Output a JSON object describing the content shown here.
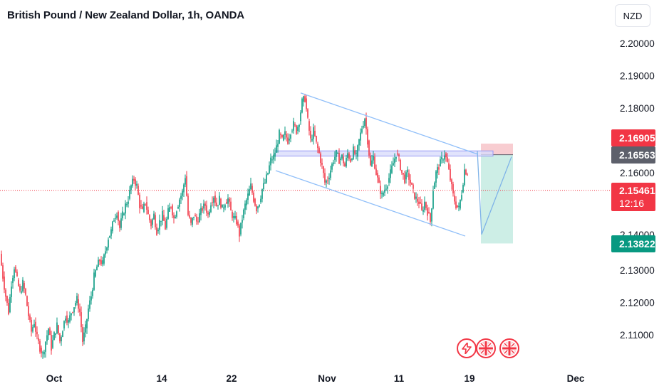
{
  "header": {
    "title": "British Pound / New Zealand Dollar, 1h, OANDA"
  },
  "currency_button": "NZD",
  "chart_data": {
    "type": "candlestick",
    "symbol": "GBPNZD",
    "interval": "1h",
    "yaxis": {
      "ticks": [
        "2.20000",
        "2.19000",
        "2.18000",
        "2.16000",
        "2.13000",
        "2.12000",
        "2.11000"
      ],
      "range": [
        2.1027,
        2.2088
      ]
    },
    "xaxis": {
      "ticks": [
        "Oct",
        "14",
        "22",
        "Nov",
        "11",
        "19",
        "Dec"
      ]
    },
    "price_path": [
      [
        0,
        2.135
      ],
      [
        4,
        2.128
      ],
      [
        8,
        2.122
      ],
      [
        12,
        2.117
      ],
      [
        16,
        2.126
      ],
      [
        20,
        2.131
      ],
      [
        24,
        2.127
      ],
      [
        28,
        2.123
      ],
      [
        32,
        2.126
      ],
      [
        36,
        2.122
      ],
      [
        40,
        2.116
      ],
      [
        44,
        2.111
      ],
      [
        48,
        2.114
      ],
      [
        52,
        2.109
      ],
      [
        56,
        2.106
      ],
      [
        60,
        2.104
      ],
      [
        64,
        2.108
      ],
      [
        68,
        2.112
      ],
      [
        72,
        2.106
      ],
      [
        76,
        2.11
      ],
      [
        80,
        2.113
      ],
      [
        84,
        2.108
      ],
      [
        88,
        2.112
      ],
      [
        92,
        2.116
      ],
      [
        96,
        2.114
      ],
      [
        100,
        2.117
      ],
      [
        104,
        2.119
      ],
      [
        108,
        2.121
      ],
      [
        112,
        2.117
      ],
      [
        116,
        2.108
      ],
      [
        120,
        2.112
      ],
      [
        124,
        2.118
      ],
      [
        128,
        2.122
      ],
      [
        132,
        2.128
      ],
      [
        136,
        2.131
      ],
      [
        140,
        2.133
      ],
      [
        144,
        2.132
      ],
      [
        148,
        2.136
      ],
      [
        152,
        2.14
      ],
      [
        156,
        2.142
      ],
      [
        160,
        2.146
      ],
      [
        164,
        2.148
      ],
      [
        168,
        2.143
      ],
      [
        172,
        2.147
      ],
      [
        176,
        2.15
      ],
      [
        180,
        2.152
      ],
      [
        184,
        2.156
      ],
      [
        188,
        2.158
      ],
      [
        192,
        2.156
      ],
      [
        196,
        2.15
      ],
      [
        200,
        2.148
      ],
      [
        204,
        2.151
      ],
      [
        208,
        2.147
      ],
      [
        212,
        2.144
      ],
      [
        216,
        2.147
      ],
      [
        220,
        2.142
      ],
      [
        224,
        2.145
      ],
      [
        228,
        2.147
      ],
      [
        232,
        2.143
      ],
      [
        236,
        2.148
      ],
      [
        240,
        2.15
      ],
      [
        244,
        2.146
      ],
      [
        248,
        2.149
      ],
      [
        252,
        2.152
      ],
      [
        256,
        2.154
      ],
      [
        260,
        2.159
      ],
      [
        264,
        2.147
      ],
      [
        268,
        2.144
      ],
      [
        272,
        2.147
      ],
      [
        276,
        2.145
      ],
      [
        280,
        2.147
      ],
      [
        284,
        2.149
      ],
      [
        288,
        2.15
      ],
      [
        292,
        2.147
      ],
      [
        296,
        2.151
      ],
      [
        300,
        2.153
      ],
      [
        304,
        2.15
      ],
      [
        308,
        2.152
      ],
      [
        312,
        2.149
      ],
      [
        316,
        2.151
      ],
      [
        320,
        2.152
      ],
      [
        324,
        2.148
      ],
      [
        328,
        2.146
      ],
      [
        332,
        2.145
      ],
      [
        336,
        2.141
      ],
      [
        340,
        2.146
      ],
      [
        344,
        2.15
      ],
      [
        348,
        2.153
      ],
      [
        352,
        2.156
      ],
      [
        356,
        2.152
      ],
      [
        360,
        2.149
      ],
      [
        364,
        2.151
      ],
      [
        368,
        2.155
      ],
      [
        372,
        2.157
      ],
      [
        376,
        2.16
      ],
      [
        380,
        2.164
      ],
      [
        384,
        2.165
      ],
      [
        388,
        2.168
      ],
      [
        392,
        2.172
      ],
      [
        396,
        2.17
      ],
      [
        400,
        2.172
      ],
      [
        404,
        2.17
      ],
      [
        408,
        2.173
      ],
      [
        412,
        2.175
      ],
      [
        416,
        2.173
      ],
      [
        420,
        2.176
      ],
      [
        424,
        2.182
      ],
      [
        428,
        2.183
      ],
      [
        432,
        2.176
      ],
      [
        436,
        2.17
      ],
      [
        440,
        2.173
      ],
      [
        444,
        2.169
      ],
      [
        448,
        2.166
      ],
      [
        452,
        2.162
      ],
      [
        456,
        2.157
      ],
      [
        460,
        2.158
      ],
      [
        464,
        2.161
      ],
      [
        468,
        2.164
      ],
      [
        472,
        2.166
      ],
      [
        476,
        2.164
      ],
      [
        480,
        2.165
      ],
      [
        484,
        2.162
      ],
      [
        488,
        2.166
      ],
      [
        492,
        2.164
      ],
      [
        496,
        2.167
      ],
      [
        500,
        2.165
      ],
      [
        504,
        2.17
      ],
      [
        508,
        2.174
      ],
      [
        512,
        2.177
      ],
      [
        516,
        2.17
      ],
      [
        520,
        2.162
      ],
      [
        524,
        2.165
      ],
      [
        528,
        2.16
      ],
      [
        532,
        2.156
      ],
      [
        536,
        2.153
      ],
      [
        540,
        2.155
      ],
      [
        544,
        2.157
      ],
      [
        548,
        2.16
      ],
      [
        552,
        2.163
      ],
      [
        556,
        2.166
      ],
      [
        560,
        2.164
      ],
      [
        564,
        2.16
      ],
      [
        568,
        2.158
      ],
      [
        572,
        2.16
      ],
      [
        576,
        2.157
      ],
      [
        580,
        2.154
      ],
      [
        584,
        2.152
      ],
      [
        588,
        2.151
      ],
      [
        592,
        2.148
      ],
      [
        596,
        2.151
      ],
      [
        600,
        2.148
      ],
      [
        604,
        2.145
      ],
      [
        608,
        2.155
      ],
      [
        612,
        2.16
      ],
      [
        616,
        2.162
      ],
      [
        620,
        2.164
      ],
      [
        624,
        2.166
      ],
      [
        628,
        2.163
      ],
      [
        632,
        2.158
      ],
      [
        636,
        2.153
      ],
      [
        640,
        2.15
      ],
      [
        644,
        2.149
      ],
      [
        648,
        2.154
      ],
      [
        652,
        2.161
      ],
      [
        656,
        2.16
      ]
    ],
    "current_price": "2.15461",
    "current_price_countdown": "12:16",
    "drawings": {
      "descending_channel": {
        "upper": [
          [
            2.1847,
            422
          ],
          [
            2.1658,
            670
          ]
        ],
        "lower": [
          [
            2.1607,
            387
          ],
          [
            2.1405,
            653
          ]
        ]
      },
      "resistance_zone": {
        "top": 2.1668,
        "bottom": 2.1652
      },
      "short_position": {
        "entry": "2.16563",
        "stop": "2.16905",
        "target": "2.13822"
      },
      "projection": [
        [
          670,
          2.1668
        ],
        [
          676,
          2.141
        ],
        [
          718,
          2.165
        ]
      ]
    }
  },
  "price_labels": {
    "stop": "2.16905",
    "entry": "2.16563",
    "last": "2.15461",
    "countdown": "12:16",
    "target": "2.13822",
    "hidden_tick": "2.14000"
  },
  "colors": {
    "bull": "#089981",
    "bear": "#f23645",
    "channel": "#90bff9",
    "stop_zone": "#f8cdd1",
    "target_zone": "#cdeee6",
    "target_badge": "#089981",
    "entry_badge": "#5d606b"
  },
  "events": {
    "icons": [
      "lightning-icon",
      "uk-flag-icon",
      "uk-flag-icon"
    ]
  }
}
